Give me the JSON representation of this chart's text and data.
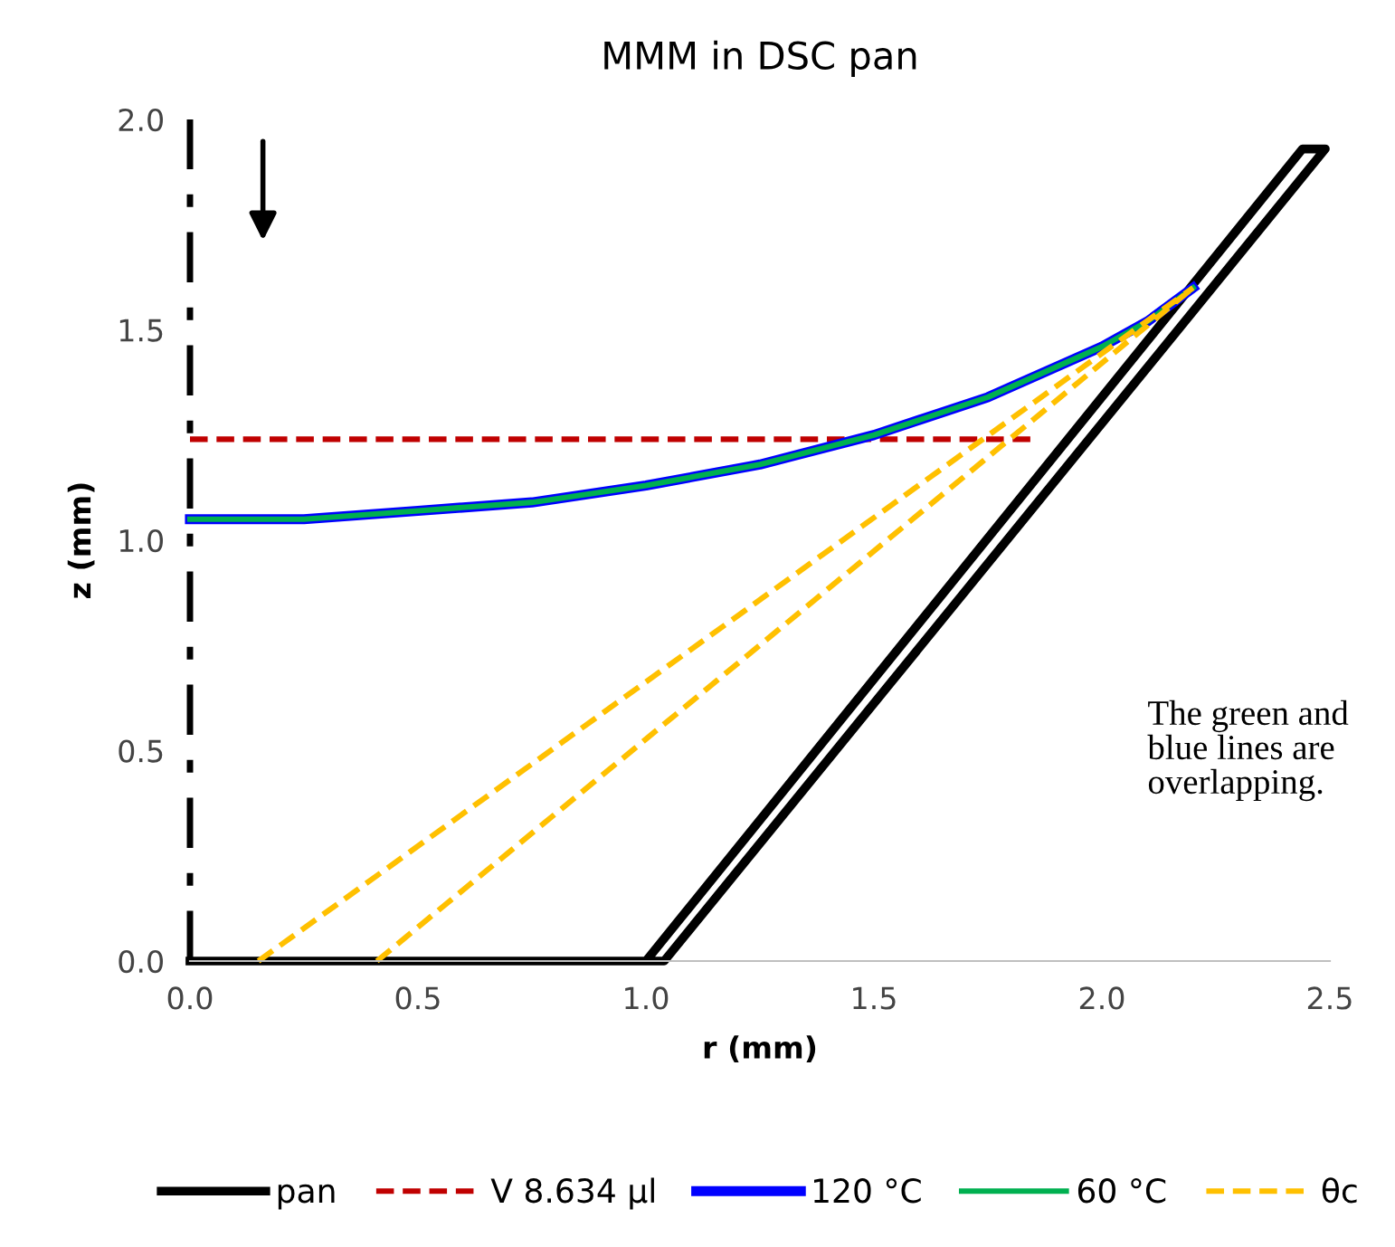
{
  "chart_data": {
    "type": "line",
    "title": "MMM in DSC pan",
    "xlabel": "r (mm)",
    "ylabel": "z (mm)",
    "xlim": [
      0,
      2.5
    ],
    "ylim": [
      0,
      2.0
    ],
    "xticks": [
      {
        "value": 0,
        "label": "0.0"
      },
      0.5,
      {
        "value": 1,
        "label": "1.0"
      },
      1.5,
      {
        "value": 2,
        "label": "2.0"
      },
      2.5
    ],
    "yticks": [
      {
        "value": 0,
        "label": "0.0"
      },
      0.5,
      {
        "value": 1,
        "label": "1.0"
      },
      1.5,
      {
        "value": 2,
        "label": "2.0"
      }
    ],
    "grid": false,
    "legend": "bottom",
    "marker": "none",
    "series": [
      {
        "name": "pan",
        "color": "#000000",
        "line_style": "solid",
        "x": [
          0,
          1.0,
          2.44,
          2.49,
          1.04,
          1.0
        ],
        "values": [
          0,
          0,
          1.93,
          1.93,
          0,
          0
        ]
      },
      {
        "name": "V 8.634 µl",
        "color": "#c00000",
        "line_style": "dashed",
        "x": [
          0,
          1.85
        ],
        "values": [
          1.24,
          1.24
        ]
      },
      {
        "name": "120 °C",
        "color": "#0000ff",
        "line_style": "solid",
        "x": [
          0,
          0.25,
          0.5,
          0.75,
          1.0,
          1.25,
          1.5,
          1.75,
          2.0,
          2.1,
          2.2
        ],
        "values": [
          1.05,
          1.05,
          1.07,
          1.09,
          1.13,
          1.18,
          1.25,
          1.34,
          1.46,
          1.52,
          1.6
        ]
      },
      {
        "name": "60 °C",
        "color": "#00b050",
        "line_style": "solid",
        "x": [
          0,
          0.25,
          0.5,
          0.75,
          1.0,
          1.25,
          1.5,
          1.75,
          2.0,
          2.1,
          2.2
        ],
        "values": [
          1.05,
          1.05,
          1.07,
          1.09,
          1.13,
          1.18,
          1.25,
          1.34,
          1.46,
          1.52,
          1.6
        ]
      },
      {
        "name": "θc",
        "color": "#ffc000",
        "line_style": "dashed",
        "x": [
          0.15,
          2.2,
          null,
          0.41,
          2.2
        ],
        "values": [
          0,
          1.6,
          null,
          0,
          1.6
        ]
      }
    ],
    "ref_lines": [
      {
        "axis": "x",
        "value": 0,
        "color": "#000000",
        "line_style": "dashdot"
      }
    ],
    "annotations": [
      "The green and\nblue lines are\noverlapping."
    ]
  }
}
